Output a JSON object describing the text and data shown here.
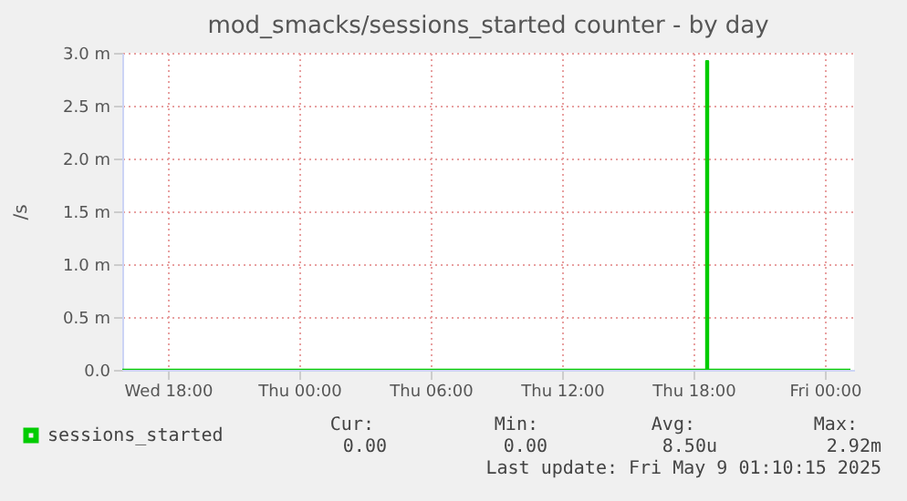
{
  "chart_data": {
    "type": "step",
    "title": "mod_smacks/sessions_started counter - by day",
    "ylabel": "/s",
    "series": [
      {
        "name": "sessions_started",
        "color": "#00cc00",
        "x": [
          "2025-05-07T15:55",
          "2025-05-08T18:35",
          "2025-05-08T18:40",
          "2025-05-09T01:10"
        ],
        "values": [
          0,
          2.92,
          0,
          0
        ]
      }
    ],
    "xlim": [
      "2025-05-07T15:55",
      "2025-05-09T01:20"
    ],
    "xticks": [
      {
        "value": "2025-05-07T18:00",
        "label": "Wed 18:00"
      },
      {
        "value": "2025-05-08T00:00",
        "label": "Thu 00:00"
      },
      {
        "value": "2025-05-08T06:00",
        "label": "Thu 06:00"
      },
      {
        "value": "2025-05-08T12:00",
        "label": "Thu 12:00"
      },
      {
        "value": "2025-05-08T18:00",
        "label": "Thu 18:00"
      },
      {
        "value": "2025-05-09T00:00",
        "label": "Fri 00:00"
      }
    ],
    "ylim": [
      0,
      3
    ],
    "yticks": [
      {
        "value": 0,
        "label": "0.0"
      },
      {
        "value": 0.5,
        "label": "0.5 m"
      },
      {
        "value": 1,
        "label": "1.0 m"
      },
      {
        "value": 1.5,
        "label": "1.5 m"
      },
      {
        "value": 2,
        "label": "2.0 m"
      },
      {
        "value": 2.5,
        "label": "2.5 m"
      },
      {
        "value": 3,
        "label": "3.0 m"
      }
    ],
    "grid": true,
    "legend": "bottom left",
    "annotations": [
      "Cur:",
      "Min:",
      "Avg:",
      "Max:",
      "0.00",
      "0.00",
      "8.50u",
      "2.92m",
      "Last update: Fri May  9 01:10:15 2025"
    ]
  }
}
